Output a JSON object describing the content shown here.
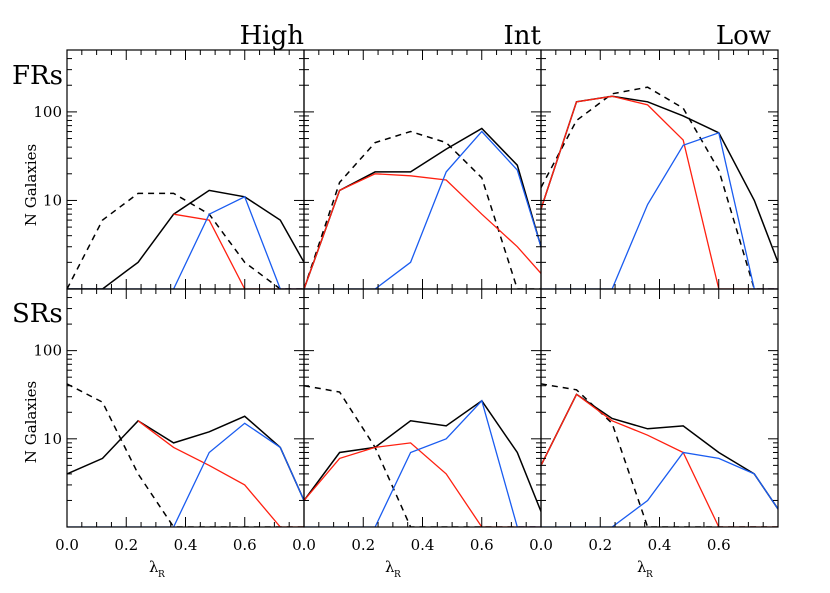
{
  "figure": {
    "columns": [
      "High",
      "Int",
      "Low"
    ],
    "rows": [
      "FRs",
      "SRs"
    ],
    "ylabel": "N Galaxies",
    "xlabel_main": "λ",
    "xlabel_sub": "R"
  },
  "chart_data": {
    "type": "line",
    "layout": "2x3 grid of panels",
    "x_ticks": [
      "0.0",
      "0.2",
      "0.4",
      "0.6"
    ],
    "y_ticks": [
      "10",
      "100"
    ],
    "xlim": [
      0.0,
      0.8
    ],
    "ylim": [
      1,
      500
    ],
    "yscale": "log",
    "series_styles": {
      "black": "#000000",
      "red": "#ff2010",
      "blue": "#1a5cf0"
    },
    "panels": [
      {
        "row": "FRs",
        "column": "High",
        "x": [
          0.0,
          0.12,
          0.24,
          0.36,
          0.48,
          0.6,
          0.72,
          0.8
        ],
        "series": [
          {
            "style": "black",
            "dash": "solid",
            "y": [
              0.6,
              1.0,
              2.0,
              7.0,
              13.0,
              11.0,
              6.0,
              2.0
            ]
          },
          {
            "style": "black",
            "dash": "dashed",
            "y": [
              1.0,
              6.0,
              12.0,
              12.0,
              7.0,
              2.0,
              1.0,
              1.0
            ]
          },
          {
            "style": "red",
            "dash": "solid",
            "y": [
              null,
              null,
              null,
              7.0,
              6.0,
              1.0,
              1.0,
              1.0
            ]
          },
          {
            "style": "blue",
            "dash": "solid",
            "y": [
              1.0,
              1.0,
              1.0,
              1.0,
              7.0,
              11.0,
              1.0,
              1.0
            ]
          }
        ]
      },
      {
        "row": "FRs",
        "column": "Int",
        "x": [
          0.0,
          0.12,
          0.24,
          0.36,
          0.48,
          0.6,
          0.72,
          0.8
        ],
        "series": [
          {
            "style": "black",
            "dash": "solid",
            "y": [
              1.0,
              13.0,
              21.0,
              21.0,
              38.0,
              65.0,
              25.0,
              3.0
            ]
          },
          {
            "style": "black",
            "dash": "dashed",
            "y": [
              1.0,
              16.0,
              45.0,
              60.0,
              45.0,
              18.0,
              1.0,
              1.0
            ]
          },
          {
            "style": "red",
            "dash": "solid",
            "y": [
              1.0,
              13.0,
              20.0,
              19.0,
              17.0,
              7.0,
              3.0,
              1.5
            ]
          },
          {
            "style": "blue",
            "dash": "solid",
            "y": [
              1.0,
              1.0,
              1.0,
              2.0,
              21.0,
              60.0,
              22.0,
              3.0
            ]
          }
        ]
      },
      {
        "row": "FRs",
        "column": "Low",
        "x": [
          0.0,
          0.12,
          0.24,
          0.36,
          0.48,
          0.6,
          0.72,
          0.8
        ],
        "series": [
          {
            "style": "black",
            "dash": "solid",
            "y": [
              8.0,
              130.0,
              150.0,
              130.0,
              90.0,
              58.0,
              10.0,
              2.0
            ]
          },
          {
            "style": "black",
            "dash": "dashed",
            "y": [
              14.0,
              80.0,
              160.0,
              190.0,
              110.0,
              22.0,
              1.0,
              1.0
            ]
          },
          {
            "style": "red",
            "dash": "solid",
            "y": [
              8.0,
              130.0,
              150.0,
              120.0,
              48.0,
              1.0,
              1.0,
              1.0
            ]
          },
          {
            "style": "blue",
            "dash": "solid",
            "y": [
              1.0,
              1.0,
              1.0,
              9.0,
              42.0,
              58.0,
              1.0,
              1.0
            ]
          }
        ]
      },
      {
        "row": "SRs",
        "column": "High",
        "x": [
          0.0,
          0.12,
          0.24,
          0.36,
          0.48,
          0.6,
          0.72,
          0.8
        ],
        "series": [
          {
            "style": "black",
            "dash": "solid",
            "y": [
              4.0,
              6.0,
              16.0,
              9.0,
              12.0,
              18.0,
              8.0,
              2.0
            ]
          },
          {
            "style": "black",
            "dash": "dashed",
            "y": [
              42.0,
              26.0,
              4.0,
              1.0,
              1.0,
              1.0,
              1.0,
              1.0
            ]
          },
          {
            "style": "red",
            "dash": "solid",
            "y": [
              null,
              null,
              16.0,
              8.0,
              5.0,
              3.0,
              1.0,
              1.0
            ]
          },
          {
            "style": "blue",
            "dash": "solid",
            "y": [
              1.0,
              1.0,
              1.0,
              1.0,
              7.0,
              15.0,
              8.0,
              2.0
            ]
          }
        ]
      },
      {
        "row": "SRs",
        "column": "Int",
        "x": [
          0.0,
          0.12,
          0.24,
          0.36,
          0.48,
          0.6,
          0.72,
          0.8
        ],
        "series": [
          {
            "style": "black",
            "dash": "solid",
            "y": [
              2.0,
              7.0,
              8.0,
              16.0,
              14.0,
              27.0,
              7.0,
              1.5
            ]
          },
          {
            "style": "black",
            "dash": "dashed",
            "y": [
              40.0,
              34.0,
              8.0,
              1.0,
              1.0,
              1.0,
              1.0,
              1.0
            ]
          },
          {
            "style": "red",
            "dash": "solid",
            "y": [
              2.0,
              6.0,
              8.0,
              9.0,
              4.0,
              1.0,
              1.0,
              1.0
            ]
          },
          {
            "style": "blue",
            "dash": "solid",
            "y": [
              1.0,
              1.0,
              1.0,
              7.0,
              10.0,
              27.0,
              1.0,
              1.0
            ]
          }
        ]
      },
      {
        "row": "SRs",
        "column": "Low",
        "x": [
          0.0,
          0.12,
          0.24,
          0.36,
          0.48,
          0.6,
          0.72,
          0.8
        ],
        "series": [
          {
            "style": "black",
            "dash": "solid",
            "y": [
              5.0,
              32.0,
              17.0,
              13.0,
              14.0,
              7.0,
              4.0,
              1.6
            ]
          },
          {
            "style": "black",
            "dash": "dashed",
            "y": [
              42.0,
              36.0,
              15.0,
              1.0,
              1.0,
              1.0,
              1.0,
              1.0
            ]
          },
          {
            "style": "red",
            "dash": "solid",
            "y": [
              5.0,
              32.0,
              16.0,
              11.0,
              7.0,
              1.0,
              1.0,
              1.0
            ]
          },
          {
            "style": "blue",
            "dash": "solid",
            "y": [
              1.0,
              1.0,
              1.0,
              2.0,
              7.0,
              6.0,
              4.0,
              1.6
            ]
          }
        ]
      }
    ]
  }
}
